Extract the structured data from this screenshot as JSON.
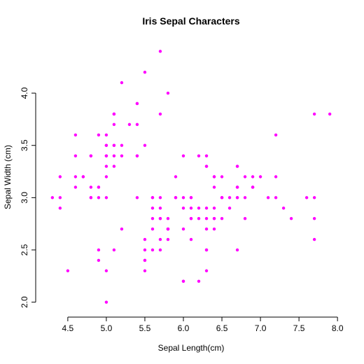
{
  "chart_data": {
    "type": "scatter",
    "title": "Iris Sepal Characters",
    "xlabel": "Sepal Length(cm)",
    "ylabel": "Sepal Width (cm)",
    "xticks": [
      "4.5",
      "5.0",
      "5.5",
      "6.0",
      "6.5",
      "7.0",
      "7.5",
      "8.0"
    ],
    "yticks": [
      "2.0",
      "2.5",
      "3.0",
      "3.5",
      "4.0"
    ],
    "xlim": [
      4.3,
      7.9
    ],
    "ylim": [
      2.0,
      4.4
    ],
    "grid": false,
    "point_color": "#ff00ff",
    "points": [
      [
        5.1,
        3.5
      ],
      [
        4.9,
        3.0
      ],
      [
        4.7,
        3.2
      ],
      [
        4.6,
        3.1
      ],
      [
        5.0,
        3.6
      ],
      [
        5.4,
        3.9
      ],
      [
        4.6,
        3.4
      ],
      [
        5.0,
        3.4
      ],
      [
        4.4,
        2.9
      ],
      [
        4.9,
        3.1
      ],
      [
        5.4,
        3.7
      ],
      [
        4.8,
        3.4
      ],
      [
        4.8,
        3.0
      ],
      [
        4.3,
        3.0
      ],
      [
        5.8,
        4.0
      ],
      [
        5.7,
        4.4
      ],
      [
        5.4,
        3.9
      ],
      [
        5.1,
        3.5
      ],
      [
        5.7,
        3.8
      ],
      [
        5.1,
        3.8
      ],
      [
        5.4,
        3.4
      ],
      [
        5.1,
        3.7
      ],
      [
        4.6,
        3.6
      ],
      [
        5.1,
        3.3
      ],
      [
        4.8,
        3.4
      ],
      [
        5.0,
        3.0
      ],
      [
        5.0,
        3.4
      ],
      [
        5.2,
        3.5
      ],
      [
        5.2,
        3.4
      ],
      [
        4.7,
        3.2
      ],
      [
        4.8,
        3.1
      ],
      [
        5.4,
        3.4
      ],
      [
        5.2,
        4.1
      ],
      [
        5.5,
        4.2
      ],
      [
        4.9,
        3.1
      ],
      [
        5.0,
        3.2
      ],
      [
        5.5,
        3.5
      ],
      [
        4.9,
        3.6
      ],
      [
        4.4,
        3.0
      ],
      [
        5.1,
        3.4
      ],
      [
        5.0,
        3.5
      ],
      [
        4.5,
        2.3
      ],
      [
        4.4,
        3.2
      ],
      [
        5.0,
        3.5
      ],
      [
        5.1,
        3.8
      ],
      [
        4.8,
        3.0
      ],
      [
        5.1,
        3.8
      ],
      [
        4.6,
        3.2
      ],
      [
        5.3,
        3.7
      ],
      [
        5.0,
        3.3
      ],
      [
        7.0,
        3.2
      ],
      [
        6.4,
        3.2
      ],
      [
        6.9,
        3.1
      ],
      [
        5.5,
        2.3
      ],
      [
        6.5,
        2.8
      ],
      [
        5.7,
        2.8
      ],
      [
        6.3,
        3.3
      ],
      [
        4.9,
        2.4
      ],
      [
        6.6,
        2.9
      ],
      [
        5.2,
        2.7
      ],
      [
        5.0,
        2.0
      ],
      [
        5.9,
        3.0
      ],
      [
        6.0,
        2.2
      ],
      [
        6.1,
        2.9
      ],
      [
        5.6,
        2.9
      ],
      [
        6.7,
        3.1
      ],
      [
        5.6,
        3.0
      ],
      [
        5.8,
        2.7
      ],
      [
        6.2,
        2.2
      ],
      [
        5.6,
        2.5
      ],
      [
        5.9,
        3.2
      ],
      [
        6.1,
        2.8
      ],
      [
        6.3,
        2.5
      ],
      [
        6.1,
        2.8
      ],
      [
        6.4,
        2.9
      ],
      [
        6.6,
        3.0
      ],
      [
        6.8,
        2.8
      ],
      [
        6.7,
        3.0
      ],
      [
        6.0,
        2.9
      ],
      [
        5.7,
        2.6
      ],
      [
        5.5,
        2.4
      ],
      [
        5.5,
        2.4
      ],
      [
        5.8,
        2.7
      ],
      [
        6.0,
        2.7
      ],
      [
        5.4,
        3.0
      ],
      [
        6.0,
        3.4
      ],
      [
        6.7,
        3.1
      ],
      [
        6.3,
        2.3
      ],
      [
        5.6,
        3.0
      ],
      [
        5.5,
        2.5
      ],
      [
        5.5,
        2.6
      ],
      [
        6.1,
        3.0
      ],
      [
        5.8,
        2.6
      ],
      [
        5.0,
        2.3
      ],
      [
        5.6,
        2.7
      ],
      [
        5.7,
        3.0
      ],
      [
        5.7,
        2.9
      ],
      [
        6.2,
        2.9
      ],
      [
        5.1,
        2.5
      ],
      [
        5.7,
        2.8
      ],
      [
        6.3,
        3.3
      ],
      [
        5.8,
        2.7
      ],
      [
        7.1,
        3.0
      ],
      [
        6.3,
        2.9
      ],
      [
        6.5,
        3.0
      ],
      [
        7.6,
        3.0
      ],
      [
        4.9,
        2.5
      ],
      [
        7.3,
        2.9
      ],
      [
        6.7,
        2.5
      ],
      [
        7.2,
        3.6
      ],
      [
        6.5,
        3.2
      ],
      [
        6.4,
        2.7
      ],
      [
        6.8,
        3.0
      ],
      [
        5.7,
        2.5
      ],
      [
        5.8,
        2.8
      ],
      [
        6.4,
        3.2
      ],
      [
        6.5,
        3.0
      ],
      [
        7.7,
        3.8
      ],
      [
        7.7,
        2.6
      ],
      [
        6.0,
        2.2
      ],
      [
        6.9,
        3.2
      ],
      [
        5.6,
        2.8
      ],
      [
        7.7,
        2.8
      ],
      [
        6.3,
        2.7
      ],
      [
        6.7,
        3.3
      ],
      [
        7.2,
        3.2
      ],
      [
        6.2,
        2.8
      ],
      [
        6.1,
        3.0
      ],
      [
        6.4,
        2.8
      ],
      [
        7.2,
        3.0
      ],
      [
        7.4,
        2.8
      ],
      [
        7.9,
        3.8
      ],
      [
        6.4,
        2.8
      ],
      [
        6.3,
        2.8
      ],
      [
        6.1,
        2.6
      ],
      [
        7.7,
        3.0
      ],
      [
        6.3,
        3.4
      ],
      [
        6.4,
        3.1
      ],
      [
        6.0,
        3.0
      ],
      [
        6.9,
        3.1
      ],
      [
        6.7,
        3.1
      ],
      [
        6.9,
        3.1
      ],
      [
        5.8,
        2.7
      ],
      [
        6.8,
        3.2
      ],
      [
        6.7,
        3.3
      ],
      [
        6.7,
        3.0
      ],
      [
        6.3,
        2.5
      ],
      [
        6.5,
        3.0
      ],
      [
        6.2,
        3.4
      ],
      [
        5.9,
        3.0
      ]
    ]
  }
}
